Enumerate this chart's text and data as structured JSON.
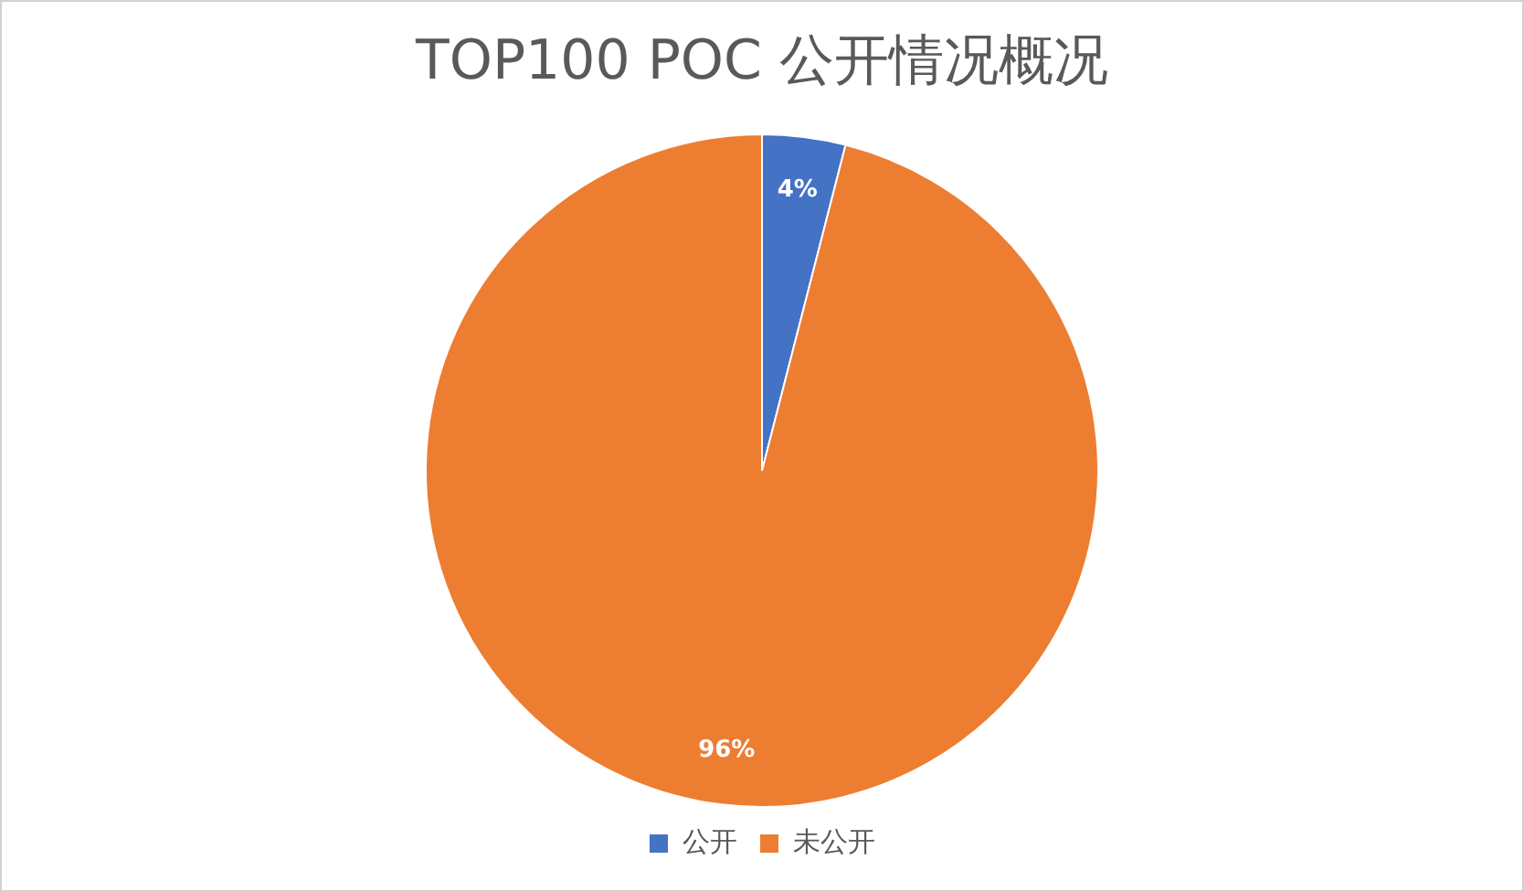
{
  "chart_data": {
    "type": "pie",
    "title": "TOP100 POC 公开情况概况",
    "categories": [
      "公开",
      "未公开"
    ],
    "values": [
      4,
      96
    ],
    "colors": [
      "#4472c4",
      "#ed7d31"
    ],
    "value_labels": [
      "4%",
      "96%"
    ],
    "legend": "bottom"
  }
}
